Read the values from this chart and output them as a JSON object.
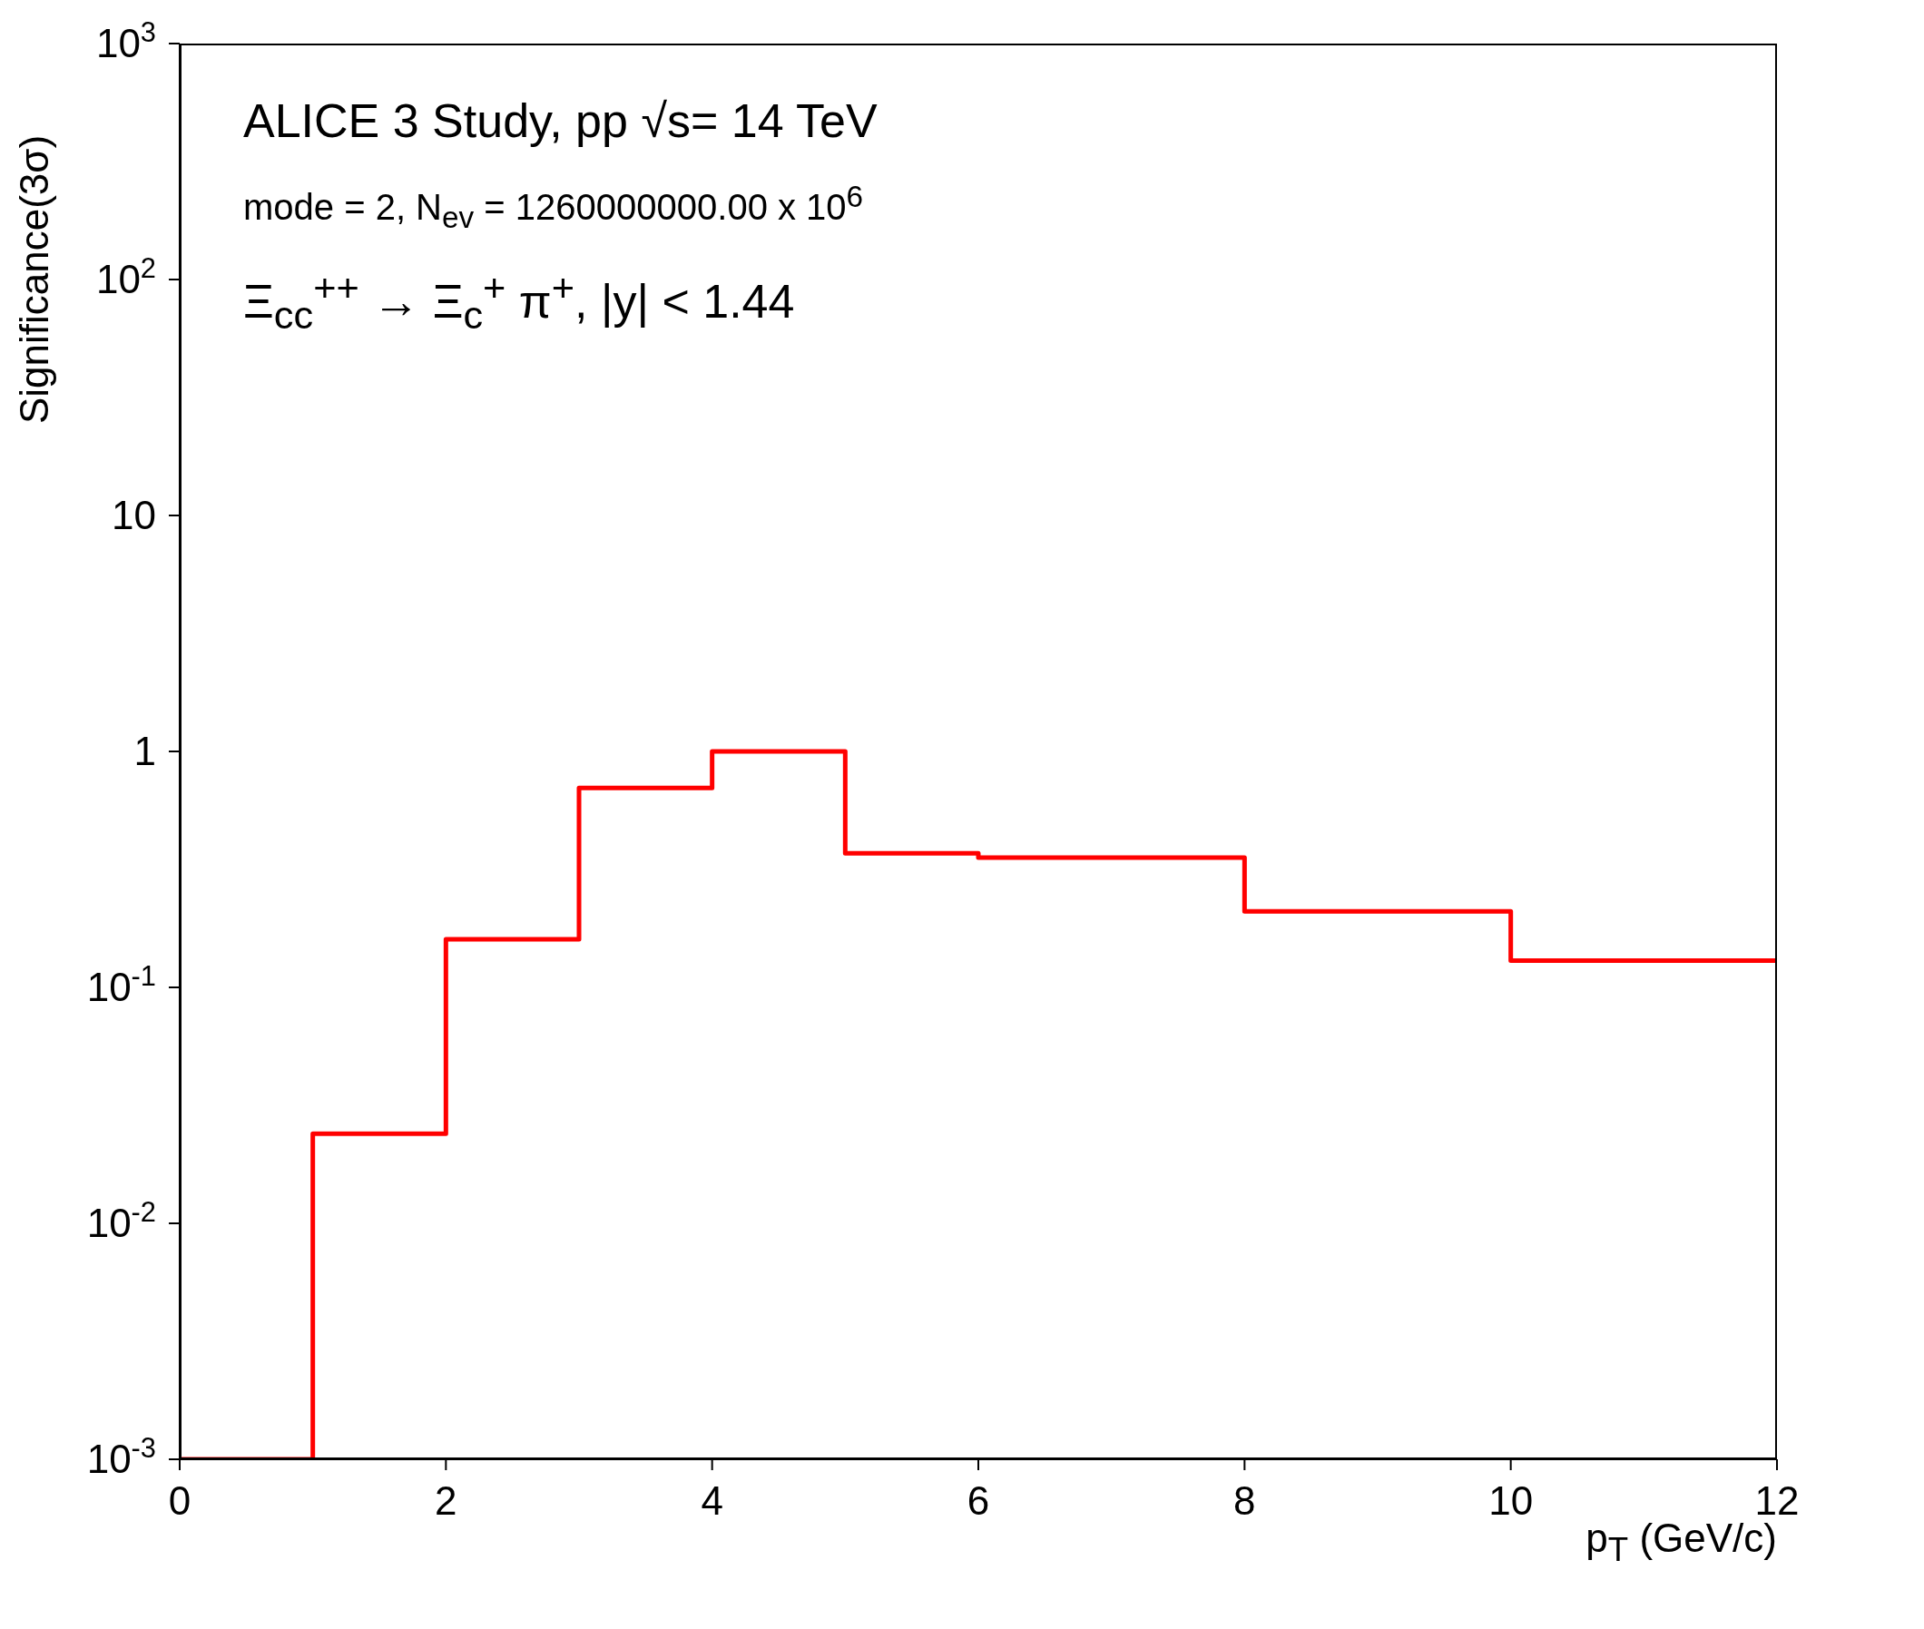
{
  "chart_data": {
    "type": "histogram",
    "xlabel": "p$_{T}$ (GeV/c)",
    "ylabel": "Significance(3σ)",
    "annotations": [
      "ALICE 3 Study, pp √s= 14 TeV",
      "mode = 2, N$_{ev}$ = 1260000000.00 x 10$^{6}$",
      "Ξ$_{cc}$$^{++}$ → Ξ$_{c}$$^{+}$ π$^{+}$, |y| < 1.44"
    ],
    "bins": [
      0,
      1,
      2,
      3,
      4,
      5,
      6,
      8,
      10,
      12
    ],
    "values": [
      0.001,
      0.024,
      0.16,
      0.7,
      1.0,
      0.37,
      0.355,
      0.21,
      0.13
    ],
    "color": "#ff0000",
    "log": "y",
    "grid": false,
    "legend": false,
    "xlim": [
      0,
      12
    ],
    "xticks": [
      0,
      2,
      4,
      6,
      8,
      10,
      12
    ],
    "ylim": [
      0.001,
      1000
    ],
    "yticks": [
      {
        "value": 0.001,
        "label": "10$^{-3}$"
      },
      {
        "value": 0.01,
        "label": "10$^{-2}$"
      },
      {
        "value": 0.1,
        "label": "10$^{-1}$"
      },
      {
        "value": 1,
        "label": "1"
      },
      {
        "value": 10,
        "label": "10"
      },
      {
        "value": 100,
        "label": "10$^{2}$"
      },
      {
        "value": 1000,
        "label": "10$^{3}$"
      }
    ]
  }
}
